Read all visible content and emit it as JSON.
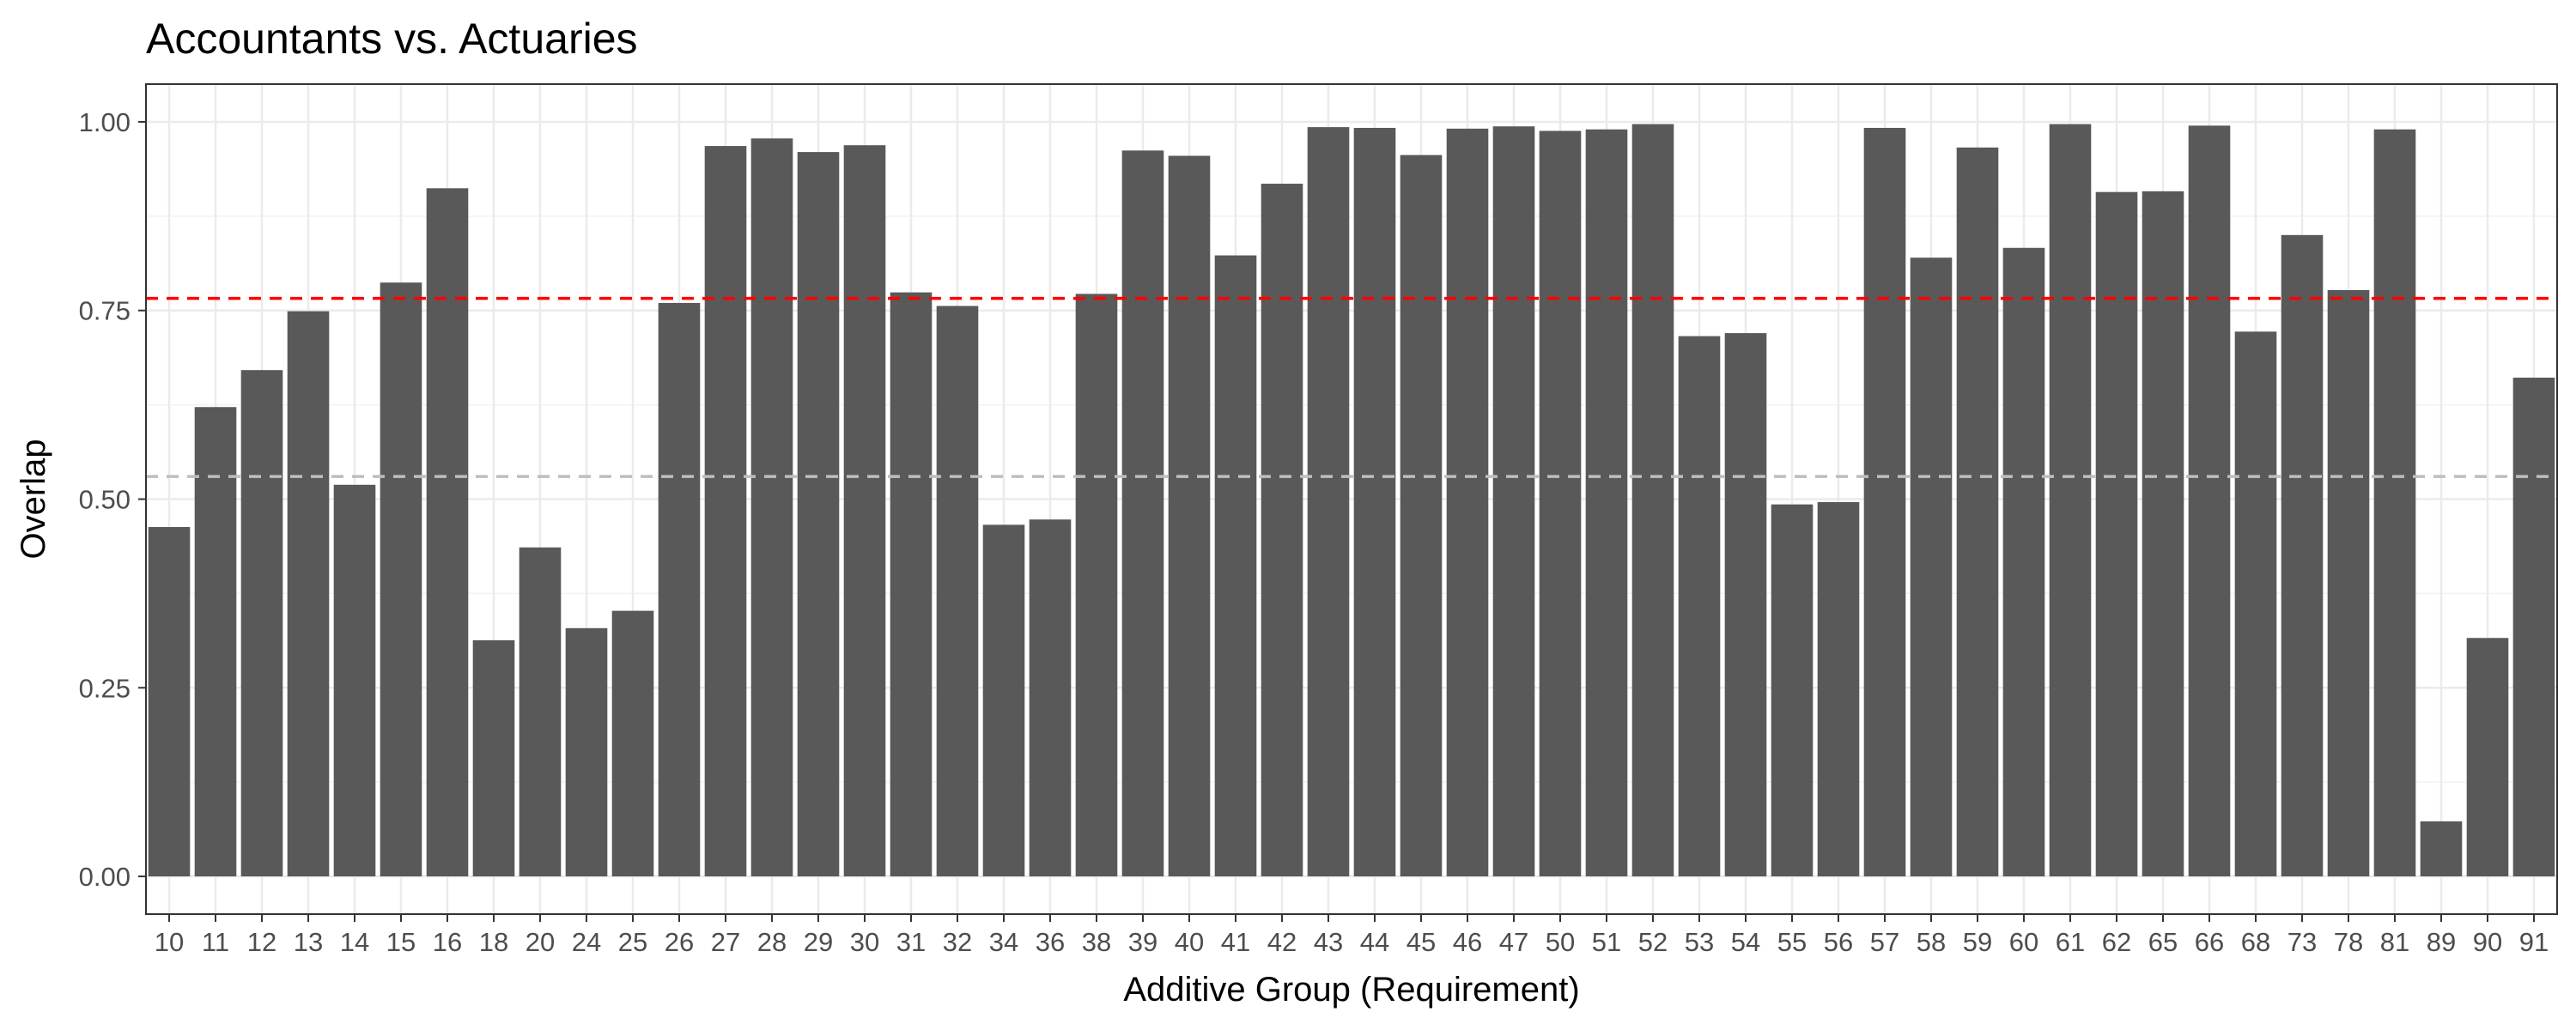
{
  "chart_data": {
    "type": "bar",
    "title": "Accountants vs. Actuaries",
    "xlabel": "Additive Group (Requirement)",
    "ylabel": "Overlap",
    "ylim": [
      -0.05,
      1.05
    ],
    "yticks": [
      0.0,
      0.25,
      0.5,
      0.75,
      1.0
    ],
    "ytick_labels": [
      "0.00",
      "0.25",
      "0.50",
      "0.75",
      "1.00"
    ],
    "grid": true,
    "theme": "bw",
    "bar_color": "#595959",
    "categories": [
      "10",
      "11",
      "12",
      "13",
      "14",
      "15",
      "16",
      "18",
      "20",
      "24",
      "25",
      "26",
      "27",
      "28",
      "29",
      "30",
      "31",
      "32",
      "34",
      "36",
      "38",
      "39",
      "40",
      "41",
      "42",
      "43",
      "44",
      "45",
      "46",
      "47",
      "50",
      "51",
      "52",
      "53",
      "54",
      "55",
      "56",
      "57",
      "58",
      "59",
      "60",
      "61",
      "62",
      "65",
      "66",
      "68",
      "73",
      "78",
      "81",
      "89",
      "90",
      "91"
    ],
    "values": [
      0.463,
      0.622,
      0.671,
      0.749,
      0.519,
      0.787,
      0.912,
      0.313,
      0.436,
      0.329,
      0.352,
      0.76,
      0.968,
      0.978,
      0.96,
      0.969,
      0.774,
      0.756,
      0.466,
      0.473,
      0.772,
      0.962,
      0.955,
      0.823,
      0.918,
      0.993,
      0.992,
      0.956,
      0.991,
      0.994,
      0.988,
      0.99,
      0.997,
      0.716,
      0.72,
      0.493,
      0.496,
      0.992,
      0.82,
      0.966,
      0.833,
      0.997,
      0.907,
      0.908,
      0.995,
      0.722,
      0.85,
      0.777,
      0.99,
      0.073,
      0.316,
      0.661
    ],
    "reference_lines": [
      {
        "value": 0.766,
        "color": "#ff0000",
        "style": "dashed"
      },
      {
        "value": 0.53,
        "color": "#bebebe",
        "style": "dashed"
      }
    ]
  }
}
